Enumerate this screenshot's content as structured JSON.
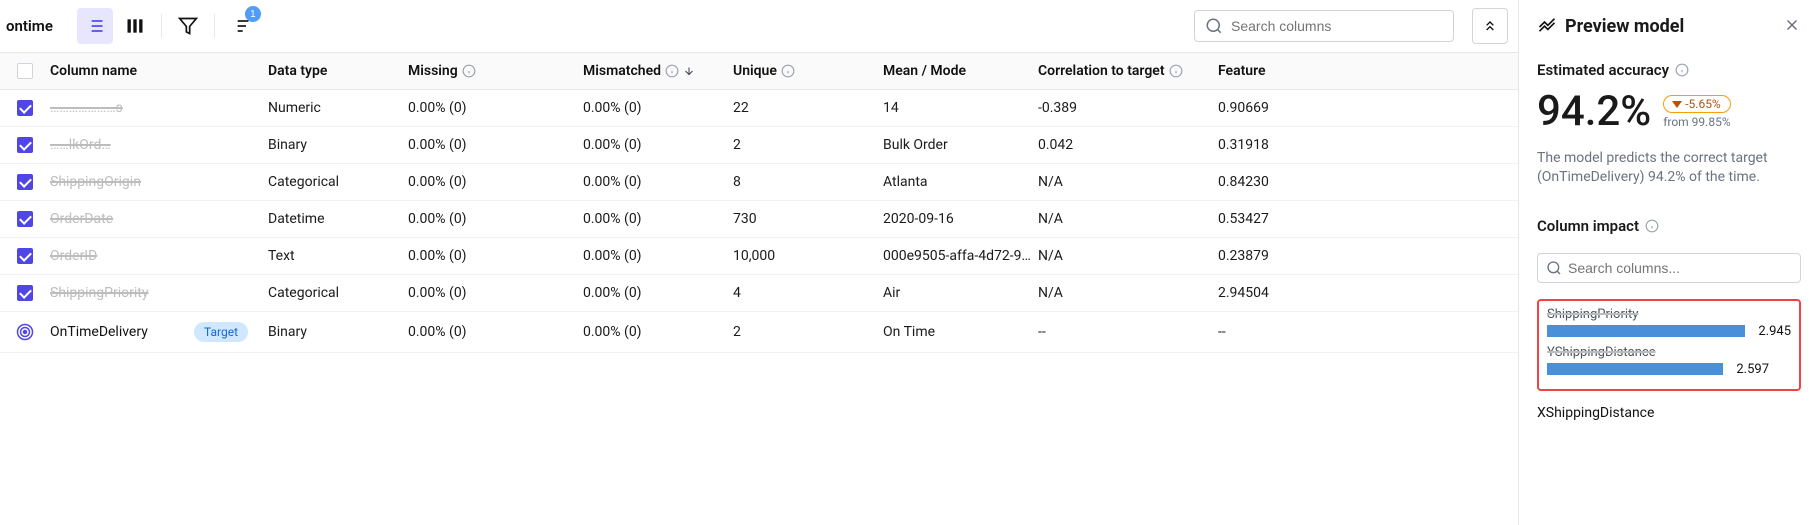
{
  "toolbar": {
    "title": "ontime",
    "sort_badge": "1",
    "search_placeholder": "Search columns"
  },
  "headers": {
    "column_name": "Column name",
    "data_type": "Data type",
    "missing": "Missing",
    "mismatched": "Mismatched",
    "unique": "Unique",
    "mean_mode": "Mean / Mode",
    "correlation": "Correlation to target",
    "feature_imp": "Feature"
  },
  "rows": [
    {
      "checked": true,
      "name": "…………………s",
      "blurred": true,
      "type": "Numeric",
      "missing": "0.00% (0)",
      "mismatched": "0.00% (0)",
      "unique": "22",
      "mean": "14",
      "corr": "-0.389",
      "feat": "0.90669"
    },
    {
      "checked": true,
      "name": "……lkOrd…",
      "blurred": true,
      "type": "Binary",
      "missing": "0.00% (0)",
      "mismatched": "0.00% (0)",
      "unique": "2",
      "mean": "Bulk Order",
      "corr": "0.042",
      "feat": "0.31918"
    },
    {
      "checked": true,
      "name": "ShippingOrigin",
      "blurred": true,
      "type": "Categorical",
      "missing": "0.00% (0)",
      "mismatched": "0.00% (0)",
      "unique": "8",
      "mean": "Atlanta",
      "corr": "N/A",
      "feat": "0.84230"
    },
    {
      "checked": true,
      "name": "OrderDate",
      "blurred": true,
      "type": "Datetime",
      "missing": "0.00% (0)",
      "mismatched": "0.00% (0)",
      "unique": "730",
      "mean": "2020-09-16",
      "corr": "N/A",
      "feat": "0.53427"
    },
    {
      "checked": true,
      "name": "OrderID",
      "blurred": true,
      "type": "Text",
      "missing": "0.00% (0)",
      "mismatched": "0.00% (0)",
      "unique": "10,000",
      "mean": "000e9505-affa-4d72-9…",
      "corr": "N/A",
      "feat": "0.23879"
    },
    {
      "checked": true,
      "name": "ShippingPriority",
      "blurred": true,
      "type": "Categorical",
      "missing": "0.00% (0)",
      "mismatched": "0.00% (0)",
      "unique": "4",
      "mean": "Air",
      "corr": "N/A",
      "feat": "2.94504"
    },
    {
      "checked": "target",
      "name": "OnTimeDelivery",
      "blurred": false,
      "target_label": "Target",
      "type": "Binary",
      "missing": "0.00% (0)",
      "mismatched": "0.00% (0)",
      "unique": "2",
      "mean": "On Time",
      "corr": "--",
      "feat": "--"
    }
  ],
  "panel": {
    "title": "Preview model",
    "est_label": "Estimated accuracy",
    "accuracy": "94.2%",
    "delta": "-5.65%",
    "from": "from 99.85%",
    "desc": "The model predicts the correct target (OnTimeDelivery) 94.2% of the time.",
    "impact_label": "Column impact",
    "impact_search_placeholder": "Search columns...",
    "impact_items": [
      {
        "name": "ShippingPriority",
        "value": "2.945",
        "bar_pct": 100
      },
      {
        "name": "YShippingDistance",
        "value": "2.597",
        "bar_pct": 88
      }
    ],
    "below_item": "XShippingDistance",
    "bar_color": "#4a90d9",
    "highlight_border": "#ef4444"
  }
}
